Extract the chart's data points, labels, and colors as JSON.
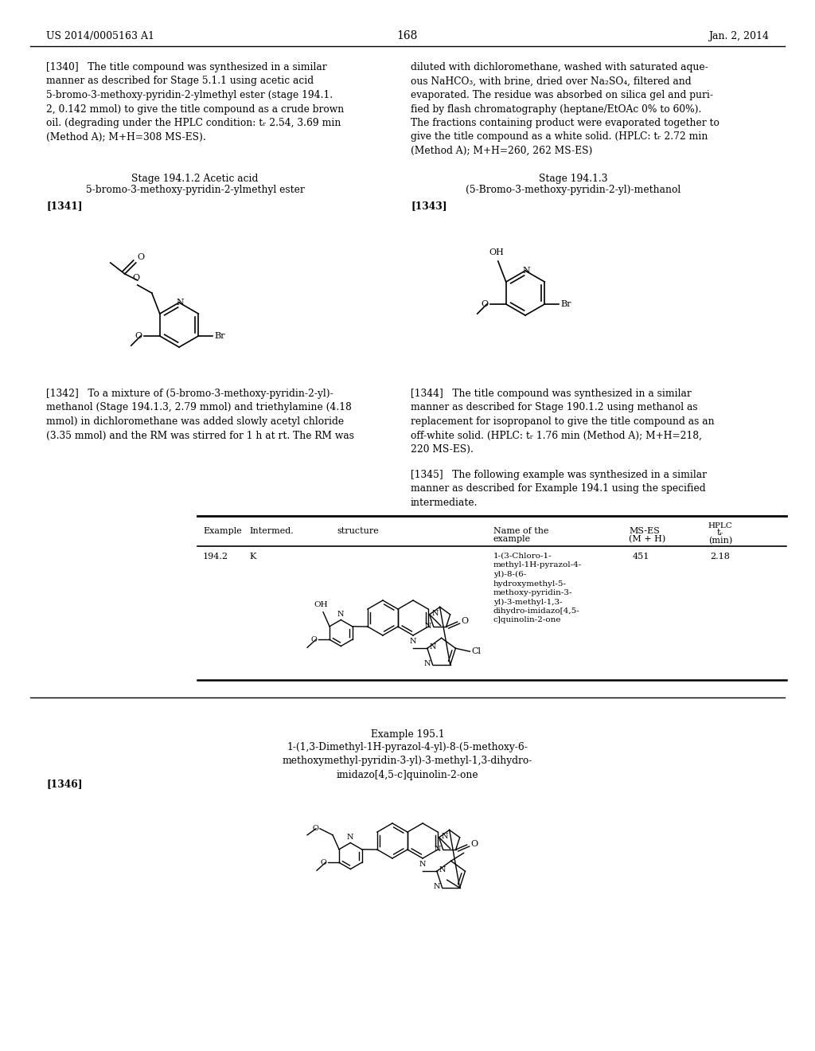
{
  "page_num": "168",
  "patent_num": "US 2014/0005163 A1",
  "patent_date": "Jan. 2, 2014",
  "background_color": "#ffffff",
  "p1340_left": "[1340]   The title compound was synthesized in a similar\nmanner as described for Stage 5.1.1 using acetic acid\n5-bromo-3-methoxy-pyridin-2-ylmethyl ester (stage 194.1.\n2, 0.142 mmol) to give the title compound as a crude brown\noil. (degrading under the HPLC condition: tᵣ 2.54, 3.69 min\n(Method A); M+H=308 MS-ES).",
  "p1340_right": "diluted with dichloromethane, washed with saturated aque-\nous NaHCO₃, with brine, dried over Na₂SO₄, filtered and\nevaporated. The residue was absorbed on silica gel and puri-\nfied by flash chromatography (heptane/EtOAc 0% to 60%).\nThe fractions containing product were evaporated together to\ngive the title compound as a white solid. (HPLC: tᵣ 2.72 min\n(Method A); M+H=260, 262 MS-ES)",
  "stage1_title": "Stage 194.1.2 Acetic acid",
  "stage1_sub": "5-bromo-3-methoxy-pyridin-2-ylmethyl ester",
  "stage2_title": "Stage 194.1.3",
  "stage2_sub": "(5-Bromo-3-methoxy-pyridin-2-yl)-methanol",
  "lbl_1341": "[1341]",
  "lbl_1343": "[1343]",
  "p1342": "[1342]   To a mixture of (5-bromo-3-methoxy-pyridin-2-yl)-\nmethanol (Stage 194.1.3, 2.79 mmol) and triethylamine (4.18\nmmol) in dichloromethane was added slowly acetyl chloride\n(3.35 mmol) and the RM was stirred for 1 h at rt. The RM was",
  "p1344": "[1344]   The title compound was synthesized in a similar\nmanner as described for Stage 190.1.2 using methanol as\nreplacement for isopropanol to give the title compound as an\noff-white solid. (HPLC: tᵣ 1.76 min (Method A); M+H=218,\n220 MS-ES).",
  "p1345": "[1345]   The following example was synthesized in a similar\nmanner as described for Example 194.1 using the specified\nintermediate.",
  "tbl_example": "194.2",
  "tbl_intermed": "K",
  "tbl_name": "1-(3-Chloro-1-\nmethyl-1H-pyrazol-4-\nyl)-8-(6-\nhydroxymethyl-5-\nmethoxy-pyridin-3-\nyl)-3-methyl-1,3-\ndihydro-imidazo[4,5-\nc]quinolin-2-one",
  "tbl_ms": "451",
  "tbl_hplc": "2.18",
  "ex195_title": "Example 195.1",
  "ex195_name": "1-(1,3-Dimethyl-1H-pyrazol-4-yl)-8-(5-methoxy-6-\nmethoxymethyl-pyridin-3-yl)-3-methyl-1,3-dihydro-\nimidazo[4,5-c]quinolin-2-one",
  "lbl_1346": "[1346]"
}
